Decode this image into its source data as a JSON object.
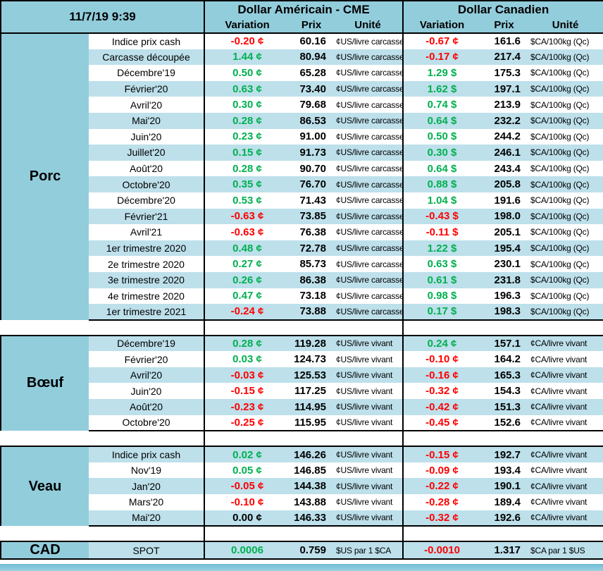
{
  "header": {
    "timestamp": "11/7/19 9:39",
    "us_title": "Dollar Américain - CME",
    "ca_title": "Dollar Canadien",
    "col_variation": "Variation",
    "col_prix": "Prix",
    "col_unite": "Unité"
  },
  "colors": {
    "header_bg": "#92CDDC",
    "band_bg": "#BDE0EB",
    "positive_text": "#00B050",
    "negative_text": "#FF0000",
    "neutral_text": "#000000"
  },
  "sections": [
    {
      "name": "Porc",
      "first_band": "white",
      "us_unit": "¢US/livre carcasse",
      "ca_unit": "$CA/100kg (Qc)",
      "rows": [
        {
          "label": "Indice prix cash",
          "us_var": "-0.20 ¢",
          "us_prix": "60.16",
          "ca_var": "-0.67 ¢",
          "ca_prix": "161.6"
        },
        {
          "label": "Carcasse découpée",
          "us_var": "1.44 ¢",
          "us_prix": "80.94",
          "ca_var": "-0.17 ¢",
          "ca_prix": "217.4"
        },
        {
          "label": "Décembre'19",
          "us_var": "0.50 ¢",
          "us_prix": "65.28",
          "ca_var": "1.29 $",
          "ca_prix": "175.3"
        },
        {
          "label": "Février'20",
          "us_var": "0.63 ¢",
          "us_prix": "73.40",
          "ca_var": "1.62 $",
          "ca_prix": "197.1"
        },
        {
          "label": "Avril'20",
          "us_var": "0.30 ¢",
          "us_prix": "79.68",
          "ca_var": "0.74 $",
          "ca_prix": "213.9"
        },
        {
          "label": "Mai'20",
          "us_var": "0.28 ¢",
          "us_prix": "86.53",
          "ca_var": "0.64 $",
          "ca_prix": "232.2"
        },
        {
          "label": "Juin'20",
          "us_var": "0.23 ¢",
          "us_prix": "91.00",
          "ca_var": "0.50 $",
          "ca_prix": "244.2"
        },
        {
          "label": "Juillet'20",
          "us_var": "0.15 ¢",
          "us_prix": "91.73",
          "ca_var": "0.30 $",
          "ca_prix": "246.1"
        },
        {
          "label": "Août'20",
          "us_var": "0.28 ¢",
          "us_prix": "90.70",
          "ca_var": "0.64 $",
          "ca_prix": "243.4"
        },
        {
          "label": "Octobre'20",
          "us_var": "0.35 ¢",
          "us_prix": "76.70",
          "ca_var": "0.88 $",
          "ca_prix": "205.8"
        },
        {
          "label": "Décembre'20",
          "us_var": "0.53 ¢",
          "us_prix": "71.43",
          "ca_var": "1.04 $",
          "ca_prix": "191.6"
        },
        {
          "label": "Février'21",
          "us_var": "-0.63 ¢",
          "us_prix": "73.85",
          "ca_var": "-0.43 $",
          "ca_prix": "198.0"
        },
        {
          "label": "Avril'21",
          "us_var": "-0.63 ¢",
          "us_prix": "76.38",
          "ca_var": "-0.11 $",
          "ca_prix": "205.1"
        },
        {
          "label": "1er trimestre 2020",
          "us_var": "0.48 ¢",
          "us_prix": "72.78",
          "ca_var": "1.22 $",
          "ca_prix": "195.4"
        },
        {
          "label": "2e trimestre 2020",
          "us_var": "0.27 ¢",
          "us_prix": "85.73",
          "ca_var": "0.63 $",
          "ca_prix": "230.1"
        },
        {
          "label": "3e trimestre 2020",
          "us_var": "0.26 ¢",
          "us_prix": "86.38",
          "ca_var": "0.61 $",
          "ca_prix": "231.8"
        },
        {
          "label": "4e trimestre 2020",
          "us_var": "0.47 ¢",
          "us_prix": "73.18",
          "ca_var": "0.98 $",
          "ca_prix": "196.3"
        },
        {
          "label": "1er trimestre 2021",
          "us_var": "-0.24 ¢",
          "us_prix": "73.88",
          "ca_var": "0.17 $",
          "ca_prix": "198.3"
        }
      ]
    },
    {
      "name": "Bœuf",
      "first_band": "band",
      "us_unit": "¢US/livre vivant",
      "ca_unit": "¢CA/livre vivant",
      "rows": [
        {
          "label": "Décembre'19",
          "us_var": "0.28 ¢",
          "us_prix": "119.28",
          "ca_var": "0.24 ¢",
          "ca_prix": "157.1"
        },
        {
          "label": "Février'20",
          "us_var": "0.03 ¢",
          "us_prix": "124.73",
          "ca_var": "-0.10 ¢",
          "ca_prix": "164.2"
        },
        {
          "label": "Avril'20",
          "us_var": "-0.03 ¢",
          "us_prix": "125.53",
          "ca_var": "-0.16 ¢",
          "ca_prix": "165.3"
        },
        {
          "label": "Juin'20",
          "us_var": "-0.15 ¢",
          "us_prix": "117.25",
          "ca_var": "-0.32 ¢",
          "ca_prix": "154.3"
        },
        {
          "label": "Août'20",
          "us_var": "-0.23 ¢",
          "us_prix": "114.95",
          "ca_var": "-0.42 ¢",
          "ca_prix": "151.3"
        },
        {
          "label": "Octobre'20",
          "us_var": "-0.25 ¢",
          "us_prix": "115.95",
          "ca_var": "-0.45 ¢",
          "ca_prix": "152.6"
        }
      ]
    },
    {
      "name": "Veau",
      "first_band": "band",
      "us_unit": "¢US/livre vivant",
      "ca_unit": "¢CA/livre vivant",
      "rows": [
        {
          "label": "Indice prix cash",
          "us_var": "0.02 ¢",
          "us_prix": "146.26",
          "ca_var": "-0.15 ¢",
          "ca_prix": "192.7"
        },
        {
          "label": "Nov'19",
          "us_var": "0.05 ¢",
          "us_prix": "146.85",
          "ca_var": "-0.09 ¢",
          "ca_prix": "193.4"
        },
        {
          "label": "Jan'20",
          "us_var": "-0.05 ¢",
          "us_prix": "144.38",
          "ca_var": "-0.22 ¢",
          "ca_prix": "190.1"
        },
        {
          "label": "Mars'20",
          "us_var": "-0.10 ¢",
          "us_prix": "143.88",
          "ca_var": "-0.28 ¢",
          "ca_prix": "189.4"
        },
        {
          "label": "Mai'20",
          "us_var": "0.00 ¢",
          "us_prix": "146.33",
          "ca_var": "-0.32 ¢",
          "ca_prix": "192.6"
        }
      ]
    },
    {
      "name": "CAD",
      "first_band": "band",
      "us_unit": "$US par 1 $CA",
      "ca_unit": "$CA par 1 $US",
      "rows": [
        {
          "label": "SPOT",
          "us_var": "0.0006",
          "us_prix": "0.759",
          "ca_var": "-0.0010",
          "ca_prix": "1.317"
        }
      ]
    }
  ]
}
